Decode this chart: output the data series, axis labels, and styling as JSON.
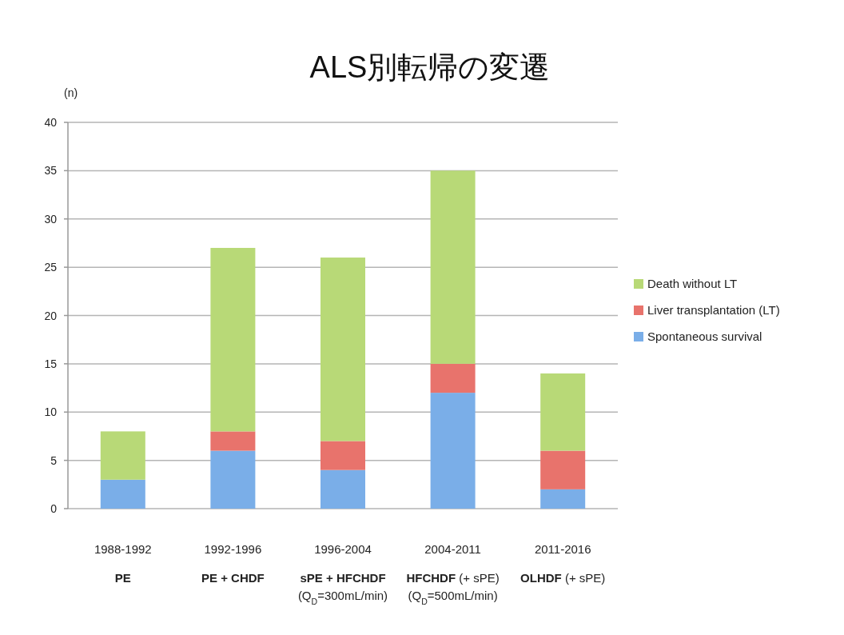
{
  "chart_data": {
    "type": "bar",
    "title": "ALS別転帰の変遷",
    "ylabel": "(n)",
    "stacked": true,
    "categories": [
      "1988-1992\nPE",
      "1992-1996\nPE + CHDF",
      "1996-2004\nsPE + HFCHDF\n(Q$_{D}$=300mL/min)",
      "2004-2011\nHFCHDF (+ sPE)\n(Q$_{D}$=500mL/min)",
      "2011-2016\nOLHDF (+ sPE)"
    ],
    "series": [
      {
        "name": "Spontaneous survival",
        "color": "#7aaee8",
        "values": [
          3,
          6,
          4,
          12,
          2
        ]
      },
      {
        "name": "Liver transplantation (LT)",
        "color": "#e8736c",
        "values": [
          0,
          2,
          3,
          3,
          4
        ]
      },
      {
        "name": "Death without LT",
        "color": "#b8d977",
        "values": [
          5,
          19,
          19,
          20,
          8
        ]
      }
    ],
    "ylim": [
      0,
      40
    ],
    "yticks": [
      0,
      5,
      10,
      15,
      20,
      25,
      30,
      35,
      40
    ],
    "grid": "y",
    "legend": "right"
  }
}
